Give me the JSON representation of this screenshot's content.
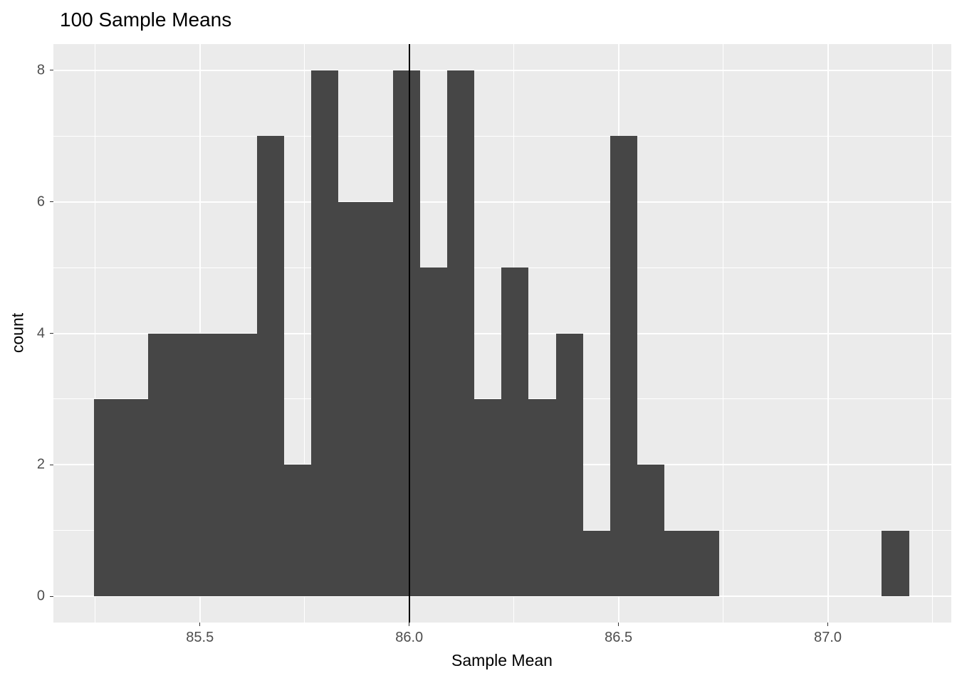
{
  "chart_data": {
    "type": "bar",
    "subtype": "histogram",
    "title": "100 Sample Means",
    "xlabel": "Sample Mean",
    "ylabel": "count",
    "total_samples": 100,
    "bin_start": 85.247,
    "bin_width": 0.0649,
    "counts": [
      3,
      3,
      4,
      4,
      4,
      4,
      7,
      2,
      8,
      6,
      6,
      8,
      5,
      8,
      3,
      5,
      3,
      4,
      1,
      7,
      2,
      1,
      1,
      0,
      0,
      0,
      0,
      0,
      0,
      1
    ],
    "vline_x": 86.0,
    "x_ticks": [
      85.5,
      86.0,
      86.5,
      87.0
    ],
    "x_tick_labels": [
      "85.5",
      "86.0",
      "86.5",
      "87.0"
    ],
    "x_minor_ticks": [
      85.25,
      85.75,
      86.25,
      86.75,
      87.25
    ],
    "y_ticks": [
      0,
      2,
      4,
      6,
      8
    ],
    "y_tick_labels": [
      "0",
      "2",
      "4",
      "6",
      "8"
    ],
    "y_minor_ticks": [
      1,
      3,
      5,
      7
    ],
    "xlim": [
      85.15,
      87.295
    ],
    "ylim": [
      -0.4,
      8.4
    ],
    "grid": true,
    "legend": "none",
    "colors": {
      "bar_fill": "#464646",
      "panel_background": "#EBEBEB",
      "grid_line": "#FFFFFF",
      "vline": "#000000",
      "tick_text": "#4D4D4D",
      "axis_title_text": "#000000",
      "title_text": "#000000"
    }
  }
}
